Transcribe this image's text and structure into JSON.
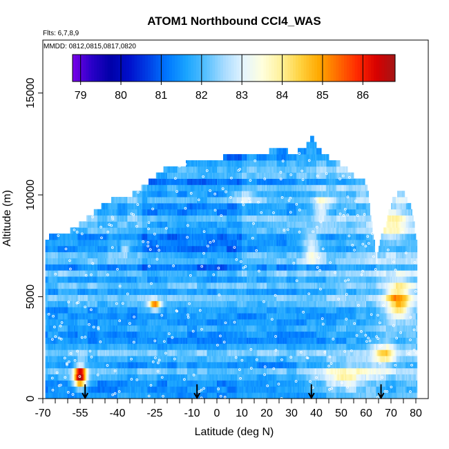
{
  "chart_data": {
    "type": "heatmap",
    "title": "ATOM1 Northbound CCl4_WAS",
    "flights_label": "Flts: 6,7,8,9",
    "dates_label": "MMDD: 0812,0815,0817,0820",
    "xlabel": "Latitude (deg N)",
    "ylabel": "Altitude (m)",
    "xlim": [
      -70,
      85
    ],
    "ylim": [
      0,
      17600
    ],
    "x_ticks": [
      -70,
      -55,
      -40,
      -25,
      -10,
      0,
      10,
      20,
      30,
      40,
      50,
      60,
      70,
      80
    ],
    "x_tick_labels": [
      "-70",
      "-55",
      "-40",
      "-25",
      "-10",
      "0",
      "10",
      "20",
      "30",
      "40",
      "50",
      "60",
      "70",
      "80"
    ],
    "x_minor_ticks": [
      -65,
      -60,
      -50,
      -45,
      -35,
      -30,
      -20,
      -15,
      -5,
      5,
      15,
      25,
      35,
      45,
      55,
      65,
      75
    ],
    "y_ticks": [
      0,
      5000,
      10000,
      15000
    ],
    "y_tick_labels": [
      "0",
      "5000",
      "10000",
      "15000"
    ],
    "colorbar": {
      "min": 78.8,
      "max": 86.8,
      "ticks": [
        79,
        80,
        81,
        82,
        83,
        84,
        85,
        86
      ],
      "tick_labels": [
        "79",
        "80",
        "81",
        "82",
        "83",
        "84",
        "85",
        "86"
      ]
    },
    "colors": {
      "palette": [
        "#7a00e8",
        "#2a00c8",
        "#0000a8",
        "#0010cc",
        "#0040e6",
        "#0078ff",
        "#1aa4ff",
        "#55c0ff",
        "#a8dcff",
        "#e4f4ff",
        "#ffffdd",
        "#fff199",
        "#ffd23f",
        "#ffa800",
        "#ff6a00",
        "#ff2a00",
        "#d80000",
        "#a31515"
      ],
      "frame": "#000000",
      "arrow": "#000000",
      "sample_point": "#ffffff"
    },
    "profiles": [
      {
        "lat": 64,
        "top": 6700,
        "base": 82.8
      },
      {
        "lat": 66,
        "top": 8100,
        "base": 82.6
      },
      {
        "lat": 68,
        "top": 8600,
        "base": 82.7
      },
      {
        "lat": 70,
        "top": 9700,
        "base": 83.0
      },
      {
        "lat": 72,
        "top": 10000,
        "base": 82.5
      },
      {
        "lat": 74,
        "top": 10300,
        "base": 82.3
      },
      {
        "lat": 76,
        "top": 9800,
        "base": 82.0
      },
      {
        "lat": 78,
        "top": 9400,
        "base": 81.9
      },
      {
        "lat": 80,
        "top": 7800,
        "base": 82.4
      }
    ],
    "flight_arrows_lat": [
      -53,
      -8,
      38,
      66
    ],
    "summary": {
      "value_range": [
        79.5,
        86.0
      ],
      "typical_value": 81.8,
      "highest_values_lat": [
        -55,
        -25,
        75
      ],
      "max_profile_altitude_m": 13000
    }
  }
}
